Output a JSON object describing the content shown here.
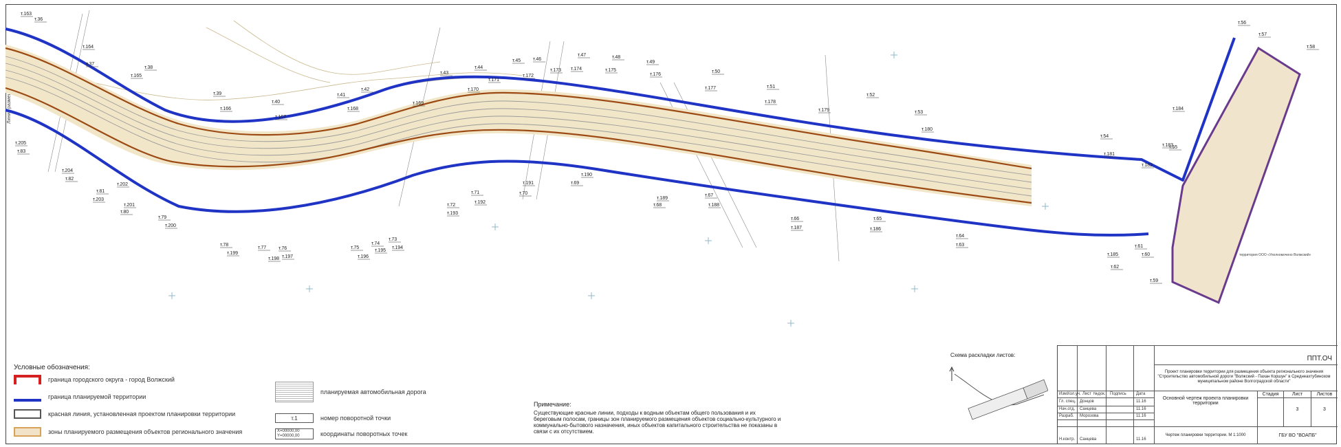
{
  "sheet": {
    "side_label": "Линия размещения существующих",
    "legend": {
      "title": "Условные обозначения:",
      "items": [
        {
          "label": "граница городского округа - город Волжский"
        },
        {
          "label": "граница планируемой территории"
        },
        {
          "label": "красная линия, установленная проектом планировки территории"
        },
        {
          "label": "зоны планируемого размещения объектов регионального значения"
        },
        {
          "label": "планируемая автомобильная дорога"
        },
        {
          "label": "номер поворотной точки",
          "sample": "т.1"
        },
        {
          "label": "координаты поворотных точек",
          "sample_x": "X=00000,00",
          "sample_y": "Y=00000,00"
        }
      ]
    },
    "note": {
      "title": "Примечание:",
      "text": "Существующие красные линии, подходы к водным объектам общего пользования и их береговым полосам, границы зон планируемого размещения объектов социально-культурного и коммунально-бытового назначения, иных объектов капитального строительства не показаны в связи с их отсутствием."
    },
    "keymap": {
      "title": "Схема раскладки листов:"
    },
    "titleblock": {
      "code": "ППТ.ОЧ",
      "project": "Проект планировки территории для размещения объекта регионального значения \"Строительство автомобильной дороги \"Волжский - Пахан Коршун\" в Среднеахтубинском муниципальном районе Волгоградской области\"",
      "headers": [
        "Изм.",
        "Кол.уч.",
        "Лист",
        "№док.",
        "Подпись",
        "Дата"
      ],
      "rows": [
        {
          "role": "Гл. спец.",
          "name": "Донцов",
          "date": "11.16"
        },
        {
          "role": "Нач.отд.",
          "name": "Санцева",
          "date": "11.16"
        },
        {
          "role": "Разраб.",
          "name": "Морозова",
          "date": "11.16"
        },
        {
          "role": "Н.контр.",
          "name": "Санцева",
          "date": "11.16"
        }
      ],
      "drawing_title": "Основной чертеж проекта планировки территории",
      "stage_label": "Стадия",
      "sheet_label": "Лист",
      "sheets_label": "Листов",
      "stage": "",
      "sheet_no": "3",
      "sheets_total": "3",
      "scale_note": "Чертеж планировки территории. М 1:1000",
      "org": "ГБУ ВО \"ВОАПБ\""
    },
    "map": {
      "territory_label": "территория ООО «Уполномочено Волжский»",
      "points": [
        "т.163",
        "т.36",
        "т.164",
        "т.37",
        "т.38",
        "т.165",
        "т.39",
        "т.166",
        "т.40",
        "т.41",
        "т.167",
        "т.42",
        "т.168",
        "т.169",
        "т.43",
        "т.170",
        "т.44",
        "т.171",
        "т.45",
        "т.46",
        "т.172",
        "т.173",
        "т.174",
        "т.47",
        "т.175",
        "т.48",
        "т.176",
        "т.49",
        "т.177",
        "т.50",
        "т.51",
        "т.178",
        "т.179",
        "т.52",
        "т.53",
        "т.180",
        "т.54",
        "т.181",
        "т.182",
        "т.183",
        "т.184",
        "т.55",
        "т.56",
        "т.57",
        "т.58",
        "т.205",
        "т.83",
        "т.204",
        "т.82",
        "т.81",
        "т.203",
        "т.202",
        "т.80",
        "т.201",
        "т.79",
        "т.200",
        "т.78",
        "т.199",
        "т.77",
        "т.198",
        "т.76",
        "т.197",
        "т.75",
        "т.196",
        "т.74",
        "т.195",
        "т.73",
        "т.194",
        "т.72",
        "т.193",
        "т.71",
        "т.192",
        "т.70",
        "т.191",
        "т.69",
        "т.190",
        "т.68",
        "т.189",
        "т.67",
        "т.188",
        "т.66",
        "т.187",
        "т.65",
        "т.186",
        "т.64",
        "т.63",
        "т.185",
        "т.62",
        "т.61",
        "т.60",
        "т.59"
      ]
    }
  }
}
